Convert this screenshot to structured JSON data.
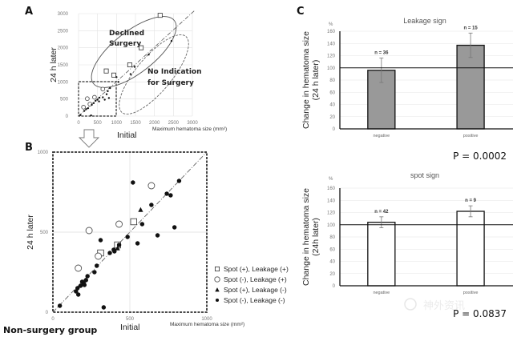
{
  "chart_data": [
    {
      "panel": "A",
      "type": "scatter",
      "xlabel": "Initial",
      "xlabel_secondary": "Maximum hematoma size (mm²)",
      "ylabel": "24 h later",
      "xlim": [
        0,
        3000
      ],
      "ylim": [
        0,
        3000
      ],
      "x_ticks": [
        "0",
        "500",
        "1000",
        "1500",
        "2000",
        "2500",
        "3000"
      ],
      "y_ticks": [
        "0",
        "500",
        "1000",
        "1500",
        "2000",
        "2500",
        "3000"
      ],
      "grid": true,
      "annotations": [
        "Declined Surgery",
        "No Indication for Surgery"
      ],
      "annotation_lines": [
        [
          "Declined",
          "Surgery"
        ],
        [
          "No Indication",
          "for Surgery"
        ]
      ],
      "series": [
        {
          "name": "declined-surgery",
          "marker": "square",
          "points": [
            [
              730,
              1320
            ],
            [
              930,
              1200
            ],
            [
              1350,
              1500
            ],
            [
              1650,
              2000
            ],
            [
              2150,
              2950
            ]
          ]
        },
        {
          "name": "no-indication",
          "marker": "dot",
          "points": [
            [
              1000,
              1140
            ],
            [
              1050,
              1000
            ],
            [
              1370,
              1230
            ],
            [
              1480,
              1440
            ],
            [
              1850,
              1800
            ],
            [
              2450,
              2200
            ]
          ]
        },
        {
          "name": "non-surgery-circles",
          "marker": "circle",
          "points": [
            [
              130,
              260
            ],
            [
              230,
              510
            ],
            [
              300,
              350
            ],
            [
              420,
              550
            ],
            [
              640,
              790
            ]
          ]
        },
        {
          "name": "non-surgery-dots",
          "marker": "dot",
          "points": [
            [
              50,
              30
            ],
            [
              150,
              150
            ],
            [
              200,
              200
            ],
            [
              250,
              230
            ],
            [
              330,
              20
            ],
            [
              350,
              330
            ],
            [
              400,
              380
            ],
            [
              450,
              450
            ],
            [
              500,
              480
            ],
            [
              540,
              430
            ],
            [
              550,
              540
            ],
            [
              640,
              550
            ],
            [
              690,
              480
            ],
            [
              740,
              640
            ],
            [
              770,
              730
            ],
            [
              800,
              530
            ],
            [
              830,
              820
            ]
          ]
        }
      ]
    },
    {
      "panel": "B",
      "type": "scatter",
      "xlabel": "Initial",
      "xlabel_secondary": "Maximum hematoma size (mm²)",
      "ylabel": "24 h later",
      "xlim": [
        0,
        1000
      ],
      "ylim": [
        0,
        1000
      ],
      "x_ticks": [
        "0",
        "500",
        "1000"
      ],
      "y_ticks": [
        "0",
        "500",
        "1000"
      ],
      "grid": true,
      "legend_position": "right",
      "group_label": "Non-surgery group",
      "series": [
        {
          "name": "Spot (+), Leakage (+)",
          "marker": "square",
          "points": [
            [
              310,
              370
            ],
            [
              420,
              420
            ],
            [
              525,
              565
            ]
          ]
        },
        {
          "name": "Spot (-), Leakage (+)",
          "marker": "circle",
          "points": [
            [
              165,
              275
            ],
            [
              235,
              510
            ],
            [
              295,
              350
            ],
            [
              430,
              550
            ],
            [
              640,
              790
            ]
          ]
        },
        {
          "name": "Spot (+), Leakage (-)",
          "marker": "triangle",
          "points": [
            [
              420,
              400
            ],
            [
              570,
              640
            ]
          ]
        },
        {
          "name": "Spot (-), Leakage (-)",
          "marker": "dot",
          "points": [
            [
              45,
              40
            ],
            [
              150,
              130
            ],
            [
              160,
              150
            ],
            [
              165,
              110
            ],
            [
              180,
              165
            ],
            [
              190,
              190
            ],
            [
              200,
              180
            ],
            [
              205,
              170
            ],
            [
              215,
              200
            ],
            [
              225,
              225
            ],
            [
              270,
              250
            ],
            [
              285,
              290
            ],
            [
              310,
              450
            ],
            [
              330,
              30
            ],
            [
              370,
              370
            ],
            [
              395,
              390
            ],
            [
              400,
              380
            ],
            [
              430,
              420
            ],
            [
              485,
              470
            ],
            [
              520,
              810
            ],
            [
              550,
              430
            ],
            [
              580,
              550
            ],
            [
              640,
              670
            ],
            [
              680,
              480
            ],
            [
              740,
              740
            ],
            [
              765,
              730
            ],
            [
              790,
              530
            ],
            [
              820,
              820
            ]
          ]
        }
      ]
    },
    {
      "panel": "C-top",
      "type": "bar",
      "title": "Leakage sign",
      "ylabel": "Change in hematoma size (24 h later)",
      "ylabel_lines": [
        "Change in hematoma size",
        "(24 h later)"
      ],
      "yunit": "%",
      "ylim": [
        0,
        160
      ],
      "y_ticks": [
        "0",
        "20",
        "40",
        "60",
        "80",
        "100",
        "120",
        "140",
        "160"
      ],
      "reference_line": 100,
      "categories": [
        "negative",
        "positive"
      ],
      "values": [
        96,
        137
      ],
      "errors": [
        20,
        20
      ],
      "n_labels": [
        "n = 36",
        "n = 15"
      ],
      "bar_color": "#999999",
      "p_value": "P = 0.0002"
    },
    {
      "panel": "C-bottom",
      "type": "bar",
      "title": "spot sign",
      "ylabel": "Change in hematoma size (24h later)",
      "ylabel_lines": [
        "Change in hematoma size",
        "(24h later)"
      ],
      "yunit": "%",
      "ylim": [
        0,
        160
      ],
      "y_ticks": [
        "0",
        "20",
        "40",
        "60",
        "80",
        "100",
        "120",
        "140",
        "160"
      ],
      "reference_line": 100,
      "categories": [
        "negative",
        "positive"
      ],
      "values": [
        104,
        122
      ],
      "errors": [
        9,
        9
      ],
      "n_labels": [
        "n = 42",
        "n = 9"
      ],
      "bar_color": "#ffffff",
      "p_value": "P = 0.0837"
    }
  ],
  "panels": {
    "a": "A",
    "b": "B",
    "c": "C"
  },
  "watermark": "神外资讯"
}
